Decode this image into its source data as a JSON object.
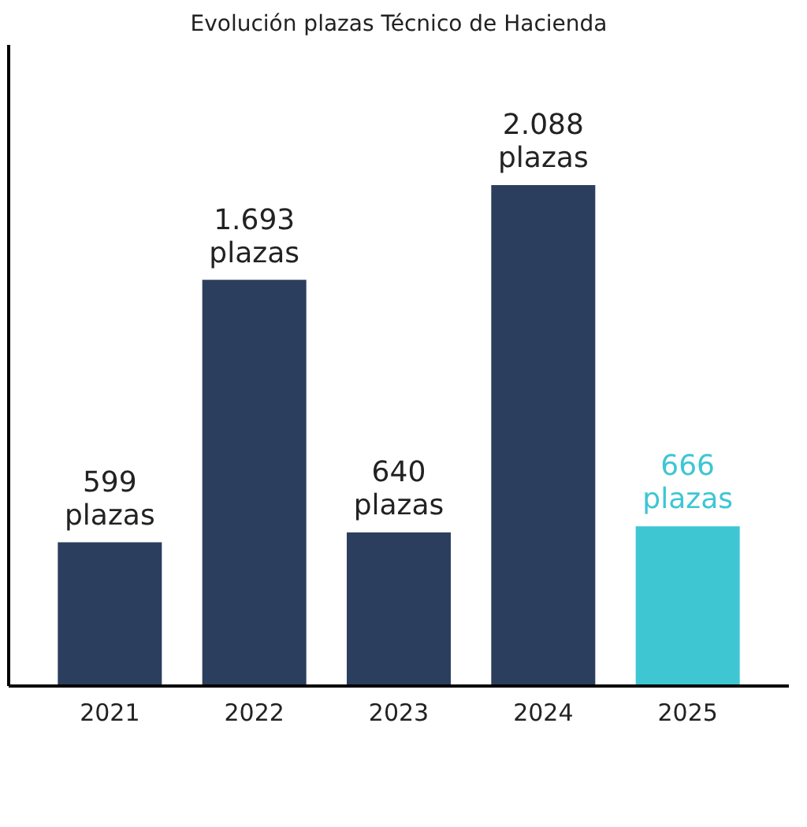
{
  "chart_data": {
    "type": "bar",
    "title": "Evolución plazas Técnico de Hacienda",
    "categories": [
      "2021",
      "2022",
      "2023",
      "2024",
      "2025"
    ],
    "values": [
      599,
      1693,
      640,
      2088,
      666
    ],
    "colors": [
      "#2c3e5e",
      "#2c3e5e",
      "#2c3e5e",
      "#2c3e5e",
      "#3ec6d3"
    ],
    "value_labels": [
      "599 plazas",
      "1.693 plazas",
      "640 plazas",
      "2.088 plazas",
      "666 plazas"
    ],
    "grid": false
  }
}
